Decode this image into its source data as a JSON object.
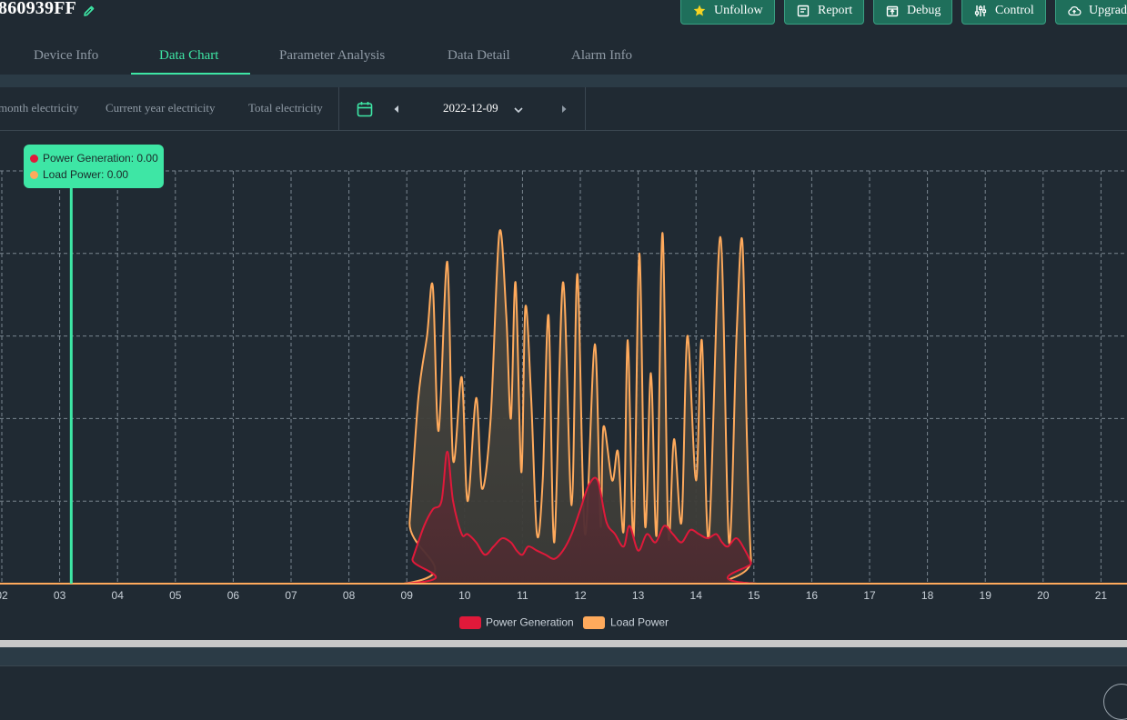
{
  "device": {
    "title": "860939FF"
  },
  "header_buttons": [
    {
      "label": "Unfollow",
      "icon": "star-icon"
    },
    {
      "label": "Report",
      "icon": "report-icon"
    },
    {
      "label": "Debug",
      "icon": "debug-icon"
    },
    {
      "label": "Control",
      "icon": "control-sliders-icon"
    },
    {
      "label": "Upgrad",
      "icon": "cloud-upload-icon"
    }
  ],
  "tabs": [
    {
      "label": "Device Info"
    },
    {
      "label": "Data Chart",
      "active": true
    },
    {
      "label": "Parameter Analysis"
    },
    {
      "label": "Data Detail"
    },
    {
      "label": "Alarm Info"
    }
  ],
  "toolbar": {
    "period_tabs": [
      {
        "label": "month electricity"
      },
      {
        "label": "Current year electricity"
      },
      {
        "label": "Total electricity"
      }
    ],
    "date": "2022-12-09"
  },
  "tooltip": {
    "rows": [
      {
        "text": "Power Generation: 0.00",
        "color": "#e0193a"
      },
      {
        "text": "Load Power: 0.00",
        "color": "#ffaa5c"
      }
    ]
  },
  "colors": {
    "accent": "#3ee6a5",
    "power_generation": "#e0193a",
    "load_power": "#ffaa5c"
  },
  "chart_data": {
    "type": "area",
    "x_tick_labels": [
      "02",
      "03",
      "04",
      "05",
      "06",
      "07",
      "08",
      "09",
      "10",
      "11",
      "12",
      "13",
      "14",
      "15",
      "16",
      "17",
      "18",
      "19",
      "20",
      "21"
    ],
    "x_range_hours": [
      2,
      21.5
    ],
    "y_range": [
      0,
      100
    ],
    "grid": true,
    "legend": {
      "placement": "bottom-center"
    },
    "hover_hour": 3.2,
    "series": [
      {
        "name": "Power Generation",
        "color": "#e0193a",
        "points": [
          [
            2,
            0
          ],
          [
            8.95,
            0
          ],
          [
            9.1,
            6
          ],
          [
            9.3,
            14
          ],
          [
            9.45,
            18
          ],
          [
            9.6,
            20
          ],
          [
            9.7,
            32
          ],
          [
            9.8,
            20
          ],
          [
            9.95,
            12
          ],
          [
            10.05,
            12
          ],
          [
            10.2,
            10
          ],
          [
            10.35,
            7
          ],
          [
            10.5,
            9
          ],
          [
            10.65,
            11
          ],
          [
            10.8,
            10
          ],
          [
            10.9,
            8
          ],
          [
            11,
            7
          ],
          [
            11.1,
            9
          ],
          [
            11.25,
            8
          ],
          [
            11.4,
            7
          ],
          [
            11.55,
            6
          ],
          [
            11.7,
            8
          ],
          [
            11.85,
            12
          ],
          [
            12,
            18
          ],
          [
            12.15,
            24
          ],
          [
            12.3,
            25
          ],
          [
            12.45,
            15
          ],
          [
            12.6,
            12
          ],
          [
            12.75,
            9
          ],
          [
            12.85,
            14
          ],
          [
            13,
            8
          ],
          [
            13.15,
            12
          ],
          [
            13.3,
            10
          ],
          [
            13.45,
            14
          ],
          [
            13.6,
            12
          ],
          [
            13.75,
            10
          ],
          [
            13.9,
            13
          ],
          [
            14.05,
            12
          ],
          [
            14.2,
            11
          ],
          [
            14.35,
            12
          ],
          [
            14.45,
            10
          ],
          [
            14.55,
            9
          ],
          [
            14.7,
            11
          ],
          [
            14.85,
            8
          ],
          [
            14.95,
            5
          ],
          [
            15.05,
            0
          ],
          [
            21.5,
            0
          ]
        ]
      },
      {
        "name": "Load Power",
        "color": "#ffaa5c",
        "points": [
          [
            2,
            0
          ],
          [
            8.95,
            0
          ],
          [
            9.05,
            15
          ],
          [
            9.2,
            45
          ],
          [
            9.35,
            60
          ],
          [
            9.45,
            72
          ],
          [
            9.55,
            37
          ],
          [
            9.7,
            78
          ],
          [
            9.8,
            30
          ],
          [
            9.95,
            50
          ],
          [
            10.05,
            20
          ],
          [
            10.2,
            45
          ],
          [
            10.3,
            23
          ],
          [
            10.45,
            40
          ],
          [
            10.6,
            85
          ],
          [
            10.72,
            65
          ],
          [
            10.8,
            40
          ],
          [
            10.88,
            73
          ],
          [
            10.98,
            27
          ],
          [
            11.05,
            67
          ],
          [
            11.15,
            45
          ],
          [
            11.25,
            12
          ],
          [
            11.35,
            25
          ],
          [
            11.45,
            65
          ],
          [
            11.55,
            10
          ],
          [
            11.7,
            73
          ],
          [
            11.85,
            19
          ],
          [
            11.95,
            75
          ],
          [
            12.08,
            12
          ],
          [
            12.25,
            58
          ],
          [
            12.35,
            14
          ],
          [
            12.4,
            38
          ],
          [
            12.55,
            25
          ],
          [
            12.65,
            32
          ],
          [
            12.75,
            13
          ],
          [
            12.82,
            59
          ],
          [
            12.92,
            11
          ],
          [
            13.02,
            80
          ],
          [
            13.12,
            14
          ],
          [
            13.22,
            51
          ],
          [
            13.32,
            12
          ],
          [
            13.42,
            85
          ],
          [
            13.52,
            12
          ],
          [
            13.62,
            35
          ],
          [
            13.75,
            15
          ],
          [
            13.85,
            60
          ],
          [
            14,
            25
          ],
          [
            14.1,
            59
          ],
          [
            14.22,
            11
          ],
          [
            14.42,
            84
          ],
          [
            14.57,
            10
          ],
          [
            14.7,
            60
          ],
          [
            14.8,
            83
          ],
          [
            14.88,
            35
          ],
          [
            14.95,
            6
          ],
          [
            15.05,
            0
          ],
          [
            21.5,
            0
          ]
        ]
      }
    ]
  }
}
